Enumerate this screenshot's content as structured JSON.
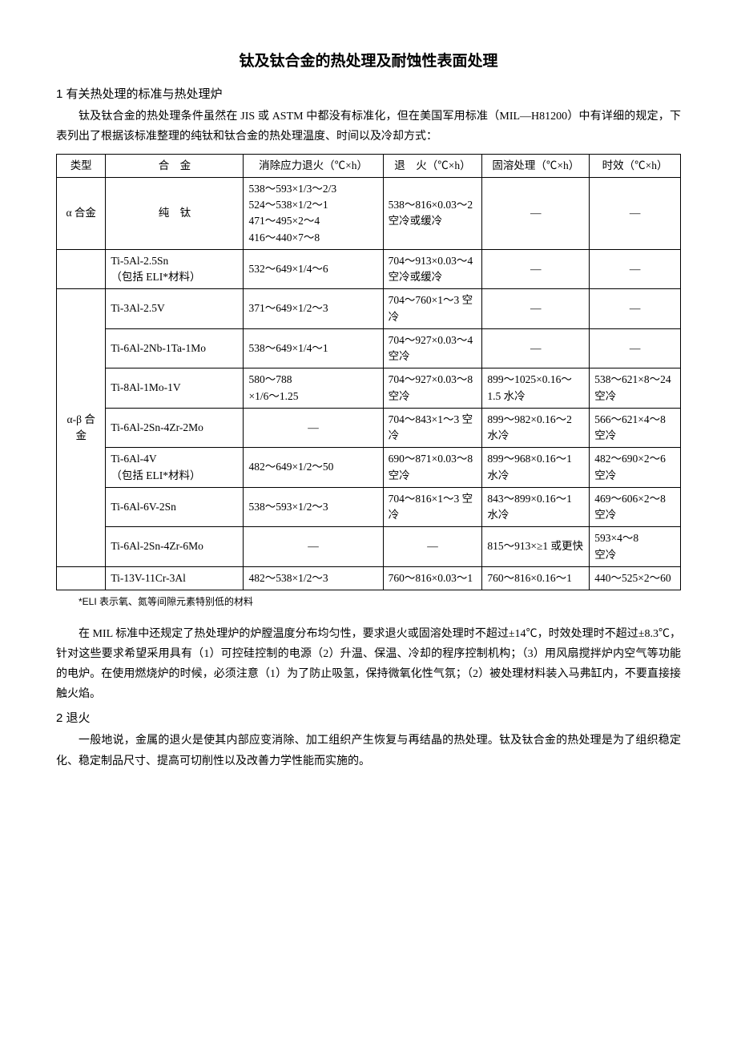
{
  "title": "钛及钛合金的热处理及耐蚀性表面处理",
  "section1_heading": "1 有关热处理的标准与热处理炉",
  "para1": "钛及钛合金的热处理条件虽然在 JIS 或 ASTM 中都没有标准化，但在美国军用标准（MIL—H81200）中有详细的规定，下表列出了根据该标准整理的纯钛和钛合金的热处理温度、时间以及冷却方式：",
  "table": {
    "columns": [
      "类型",
      "合　金",
      "消除应力退火（℃×h）",
      "退　火（℃×h）",
      "固溶处理（℃×h）",
      "时效（℃×h）"
    ],
    "rows": [
      {
        "type": "α 合金",
        "type_rowspan": 1,
        "alloy": "纯　钛",
        "alloy_center": true,
        "c1": "538～593×1/3～2/3\n524～538×1/2～1\n471～495×2～4\n416～440×7～8",
        "c2": "538～816×0.03～2\n空冷或缓冷",
        "c3": "—",
        "c4": "—"
      },
      {
        "type": "",
        "type_rowspan": 1,
        "alloy": "Ti-5Al-2.5Sn\n（包括 ELI*材料）",
        "c1": "532～649×1/4～6",
        "c2": "704～913×0.03～4\n空冷或缓冷",
        "c3": "—",
        "c4": "—"
      },
      {
        "type": "α-β 合金",
        "type_rowspan": 7,
        "alloy": "Ti-3Al-2.5V",
        "c1": "371～649×1/2～3",
        "c2": "704～760×1～3 空冷",
        "c3": "—",
        "c4": "—"
      },
      {
        "alloy": "Ti-6Al-2Nb-1Ta-1Mo",
        "c1": "538～649×1/4～1",
        "c2": "704～927×0.03～4 空冷",
        "c3": "—",
        "c4": "—"
      },
      {
        "alloy": "Ti-8Al-1Mo-1V",
        "c1": "580～788\n×1/6～1.25",
        "c2": "704～927×0.03～8 空冷",
        "c3": "899～1025×0.16～1.5 水冷",
        "c4": "538～621×8～24 空冷"
      },
      {
        "alloy": "Ti-6Al-2Sn-4Zr-2Mo",
        "c1": "—",
        "c2": "704～843×1～3 空冷",
        "c3": "899～982×0.16～2 水冷",
        "c4": "566～621×4～8 空冷"
      },
      {
        "alloy": "Ti-6Al-4V\n（包括 ELI*材料）",
        "c1": "482～649×1/2～50",
        "c2": "690～871×0.03～8 空冷",
        "c3": "899～968×0.16～1 水冷",
        "c4": "482～690×2～6 空冷"
      },
      {
        "alloy": "Ti-6Al-6V-2Sn",
        "c1": "538～593×1/2～3",
        "c2": "704～816×1～3 空冷",
        "c3": "843～899×0.16～1 水冷",
        "c4": "469～606×2～8 空冷"
      },
      {
        "alloy": "Ti-6Al-2Sn-4Zr-6Mo",
        "c1": "—",
        "c2": "—",
        "c3": "815～913×≥1 或更快",
        "c4": "593×4～8\n空冷"
      },
      {
        "type": "",
        "type_rowspan": 1,
        "alloy": "Ti-13V-11Cr-3Al",
        "c1": "482～538×1/2～3",
        "c2": "760～816×0.03～1",
        "c3": "760～816×0.16～1",
        "c4": "440～525×2～60"
      }
    ]
  },
  "footnote": "*ELI 表示氧、氮等间隙元素特别低的材料",
  "para2": "在 MIL 标准中还规定了热处理炉的炉膛温度分布均匀性，要求退火或固溶处理时不超过±14℃，时效处理时不超过±8.3℃，针对这些要求希望采用具有（1）可控硅控制的电源（2）升温、保温、冷却的程序控制机构；（3）用风扇搅拌炉内空气等功能的电炉。在使用燃烧炉的时候，必须注意（1）为了防止吸氢，保持微氧化性气氛；（2）被处理材料装入马弗缸内，不要直接接触火焰。",
  "section2_heading": "2 退火",
  "para3": "一般地说，金属的退火是使其内部应变消除、加工组织产生恢复与再结晶的热处理。钛及钛合金的热处理是为了组织稳定化、稳定制品尺寸、提高可切削性以及改善力学性能而实施的。"
}
